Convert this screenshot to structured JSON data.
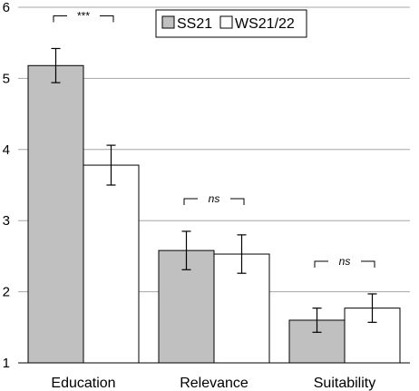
{
  "chart_data": {
    "type": "bar",
    "categories": [
      "Education",
      "Relevance",
      "Suitability"
    ],
    "series": [
      {
        "name": "SS21",
        "color": "#c0c0c0",
        "values": [
          5.18,
          2.58,
          1.6
        ],
        "error": [
          0.24,
          0.27,
          0.17
        ]
      },
      {
        "name": "WS21/22",
        "color": "#ffffff",
        "values": [
          3.78,
          2.53,
          1.77
        ],
        "error": [
          0.28,
          0.27,
          0.2
        ]
      }
    ],
    "significance": [
      "***",
      "ns",
      "ns"
    ],
    "ylim": [
      1,
      6
    ],
    "yticks": [
      "1",
      "2",
      "3",
      "4",
      "5",
      "6"
    ],
    "grid": true,
    "legend_position": "top-center",
    "xlabel": "",
    "ylabel": "",
    "title": ""
  }
}
